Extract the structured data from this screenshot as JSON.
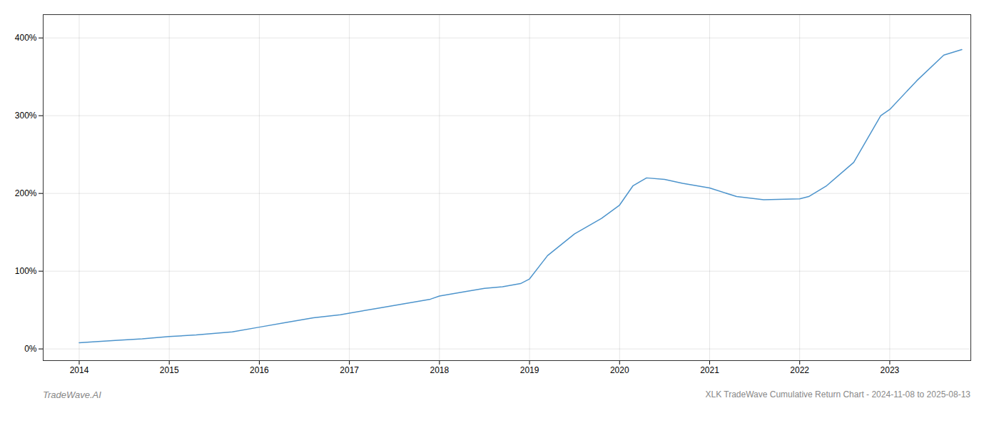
{
  "chart_data": {
    "type": "line",
    "title": "XLK TradeWave Cumulative Return Chart - 2024-11-08 to 2025-08-13",
    "annotations": [
      "TradeWave.AI"
    ],
    "color": "#4d94cc",
    "grid": true,
    "x": [
      2014.0,
      2014.15,
      2014.4,
      2014.7,
      2015.0,
      2015.3,
      2015.7,
      2016.0,
      2016.3,
      2016.6,
      2016.9,
      2017.0,
      2017.3,
      2017.6,
      2017.9,
      2018.0,
      2018.3,
      2018.5,
      2018.7,
      2018.9,
      2019.0,
      2019.2,
      2019.5,
      2019.8,
      2020.0,
      2020.15,
      2020.3,
      2020.5,
      2020.7,
      2021.0,
      2021.3,
      2021.6,
      2022.0,
      2022.1,
      2022.3,
      2022.6,
      2022.9,
      2023.0,
      2023.3,
      2023.6,
      2023.8
    ],
    "values": [
      8,
      9,
      11,
      13,
      16,
      18,
      22,
      28,
      34,
      40,
      44,
      46,
      52,
      58,
      64,
      68,
      74,
      78,
      80,
      84,
      90,
      120,
      148,
      168,
      185,
      210,
      220,
      218,
      213,
      207,
      196,
      192,
      193,
      196,
      210,
      240,
      300,
      308,
      345,
      378,
      385
    ],
    "xlim": [
      2013.6,
      2023.9
    ],
    "xticks": [
      2014,
      2015,
      2016,
      2017,
      2018,
      2019,
      2020,
      2021,
      2022,
      2023
    ],
    "ylim": [
      -15,
      430
    ],
    "yticks": [
      {
        "value": 0,
        "label": "0%"
      },
      {
        "value": 100,
        "label": "100%"
      },
      {
        "value": 200,
        "label": "200%"
      },
      {
        "value": 300,
        "label": "300%"
      },
      {
        "value": 400,
        "label": "400%"
      }
    ]
  }
}
